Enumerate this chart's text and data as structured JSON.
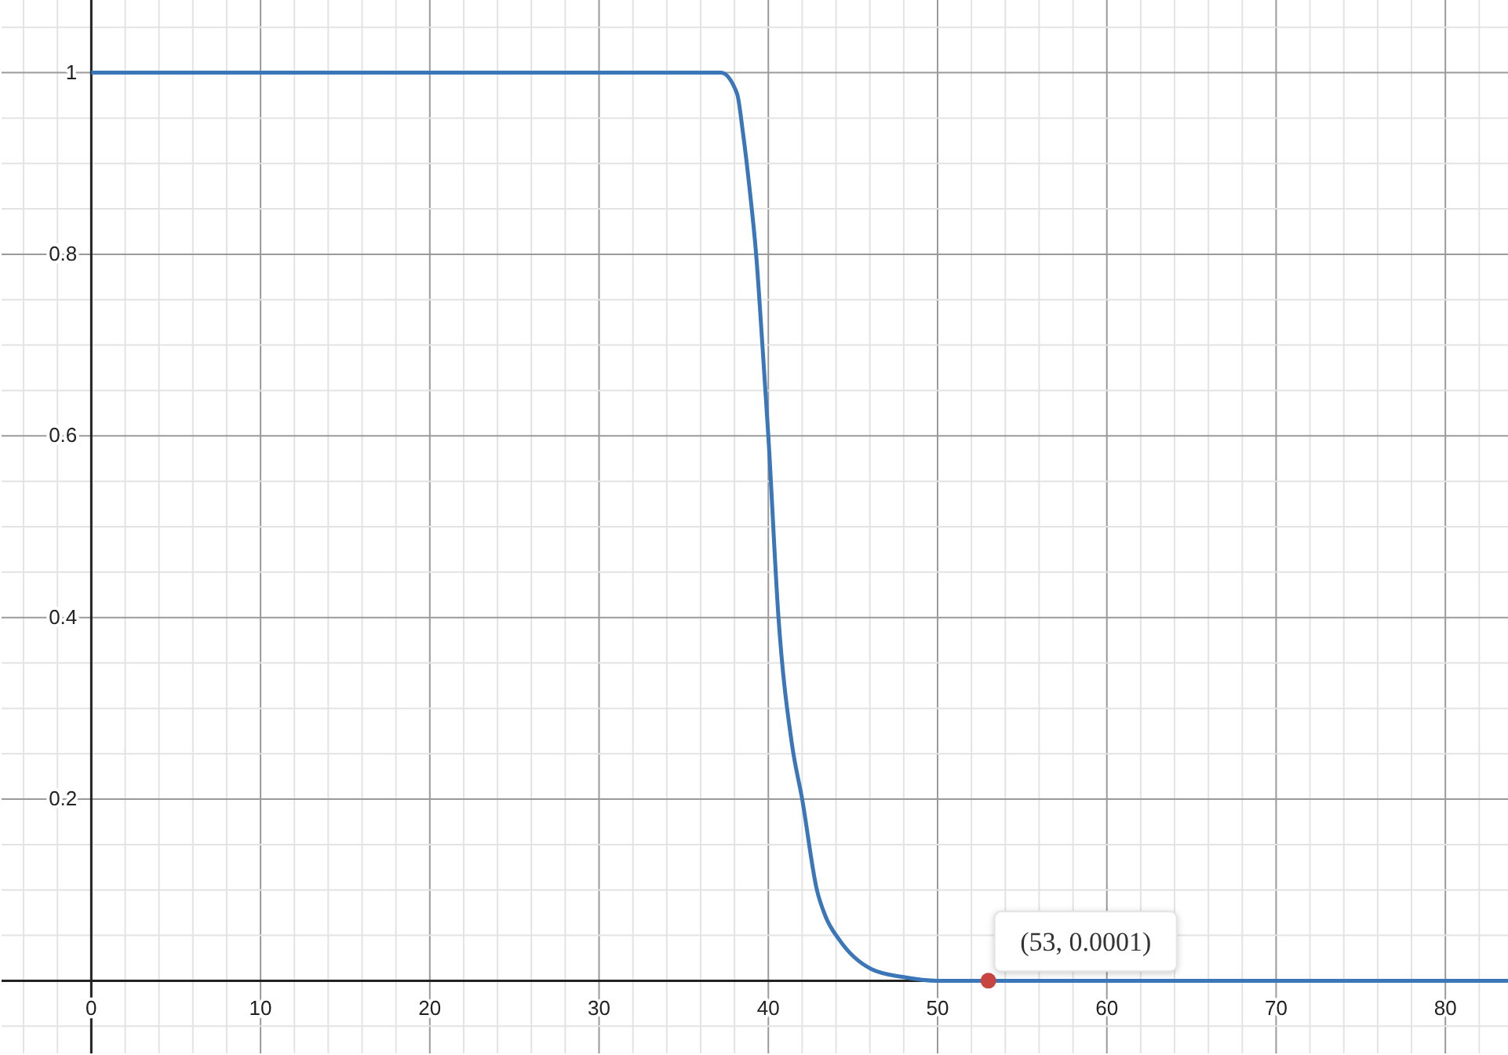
{
  "chart_data": {
    "type": "line",
    "xlim": [
      -5.3,
      83.7
    ],
    "ylim": [
      -0.08,
      1.08
    ],
    "xticks": [
      {
        "value": -4,
        "label": null
      },
      {
        "value": -2,
        "label": null
      },
      0,
      {
        "value": 2,
        "label": null
      },
      {
        "value": 4,
        "label": null
      },
      {
        "value": 6,
        "label": null
      },
      {
        "value": 8,
        "label": null
      },
      10,
      {
        "value": 12,
        "label": null
      },
      {
        "value": 14,
        "label": null
      },
      {
        "value": 16,
        "label": null
      },
      {
        "value": 18,
        "label": null
      },
      20,
      {
        "value": 22,
        "label": null
      },
      {
        "value": 24,
        "label": null
      },
      {
        "value": 26,
        "label": null
      },
      {
        "value": 28,
        "label": null
      },
      30,
      {
        "value": 32,
        "label": null
      },
      {
        "value": 34,
        "label": null
      },
      {
        "value": 36,
        "label": null
      },
      {
        "value": 38,
        "label": null
      },
      40,
      {
        "value": 42,
        "label": null
      },
      {
        "value": 44,
        "label": null
      },
      {
        "value": 46,
        "label": null
      },
      {
        "value": 48,
        "label": null
      },
      50,
      {
        "value": 52,
        "label": null
      },
      {
        "value": 54,
        "label": null
      },
      {
        "value": 56,
        "label": null
      },
      {
        "value": 58,
        "label": null
      },
      60,
      {
        "value": 62,
        "label": null
      },
      {
        "value": 64,
        "label": null
      },
      {
        "value": 66,
        "label": null
      },
      {
        "value": 68,
        "label": null
      },
      70,
      {
        "value": 72,
        "label": null
      },
      {
        "value": 74,
        "label": null
      },
      {
        "value": 76,
        "label": null
      },
      {
        "value": 78,
        "label": null
      },
      80,
      {
        "value": 82,
        "label": null
      }
    ],
    "yticks": [
      {
        "value": -0.05,
        "label": null
      },
      {
        "value": 0,
        "label": null
      },
      {
        "value": 0.05,
        "label": null
      },
      {
        "value": 0.1,
        "label": null
      },
      {
        "value": 0.15,
        "label": null
      },
      0.2,
      {
        "value": 0.25,
        "label": null
      },
      {
        "value": 0.3,
        "label": null
      },
      {
        "value": 0.35,
        "label": null
      },
      0.4,
      {
        "value": 0.45,
        "label": null
      },
      {
        "value": 0.5,
        "label": null
      },
      {
        "value": 0.55,
        "label": null
      },
      0.6,
      {
        "value": 0.65,
        "label": null
      },
      {
        "value": 0.7,
        "label": null
      },
      {
        "value": 0.75,
        "label": null
      },
      0.8,
      {
        "value": 0.85,
        "label": null
      },
      {
        "value": 0.9,
        "label": null
      },
      {
        "value": 0.95,
        "label": null
      },
      1,
      {
        "value": 1.05,
        "label": null
      }
    ],
    "grid": true,
    "series": [
      {
        "color": "#3a76b8",
        "x": [
          0,
          10,
          20,
          30,
          37.2,
          38.15,
          38.5,
          38.9,
          39.28,
          39.65,
          40,
          40.6,
          41.4,
          42,
          42.87,
          43.4,
          44.2,
          46.08,
          48,
          50,
          53,
          60,
          70,
          83.7
        ],
        "values": [
          1,
          1,
          1,
          1,
          1,
          0.977,
          0.934,
          0.871,
          0.8,
          0.7,
          0.6,
          0.4,
          0.26,
          0.2,
          0.1,
          0.07,
          0.045,
          0.013,
          0.004,
          0,
          0,
          0,
          0,
          0
        ]
      },
      {
        "type": "scatter",
        "marker": "circle",
        "color": "#c74440",
        "x": [
          53
        ],
        "values": [
          0.0001
        ]
      }
    ],
    "annotations": [
      {
        "text": "(53, 0.0001)",
        "x": 53,
        "y": 0.0001
      }
    ]
  }
}
